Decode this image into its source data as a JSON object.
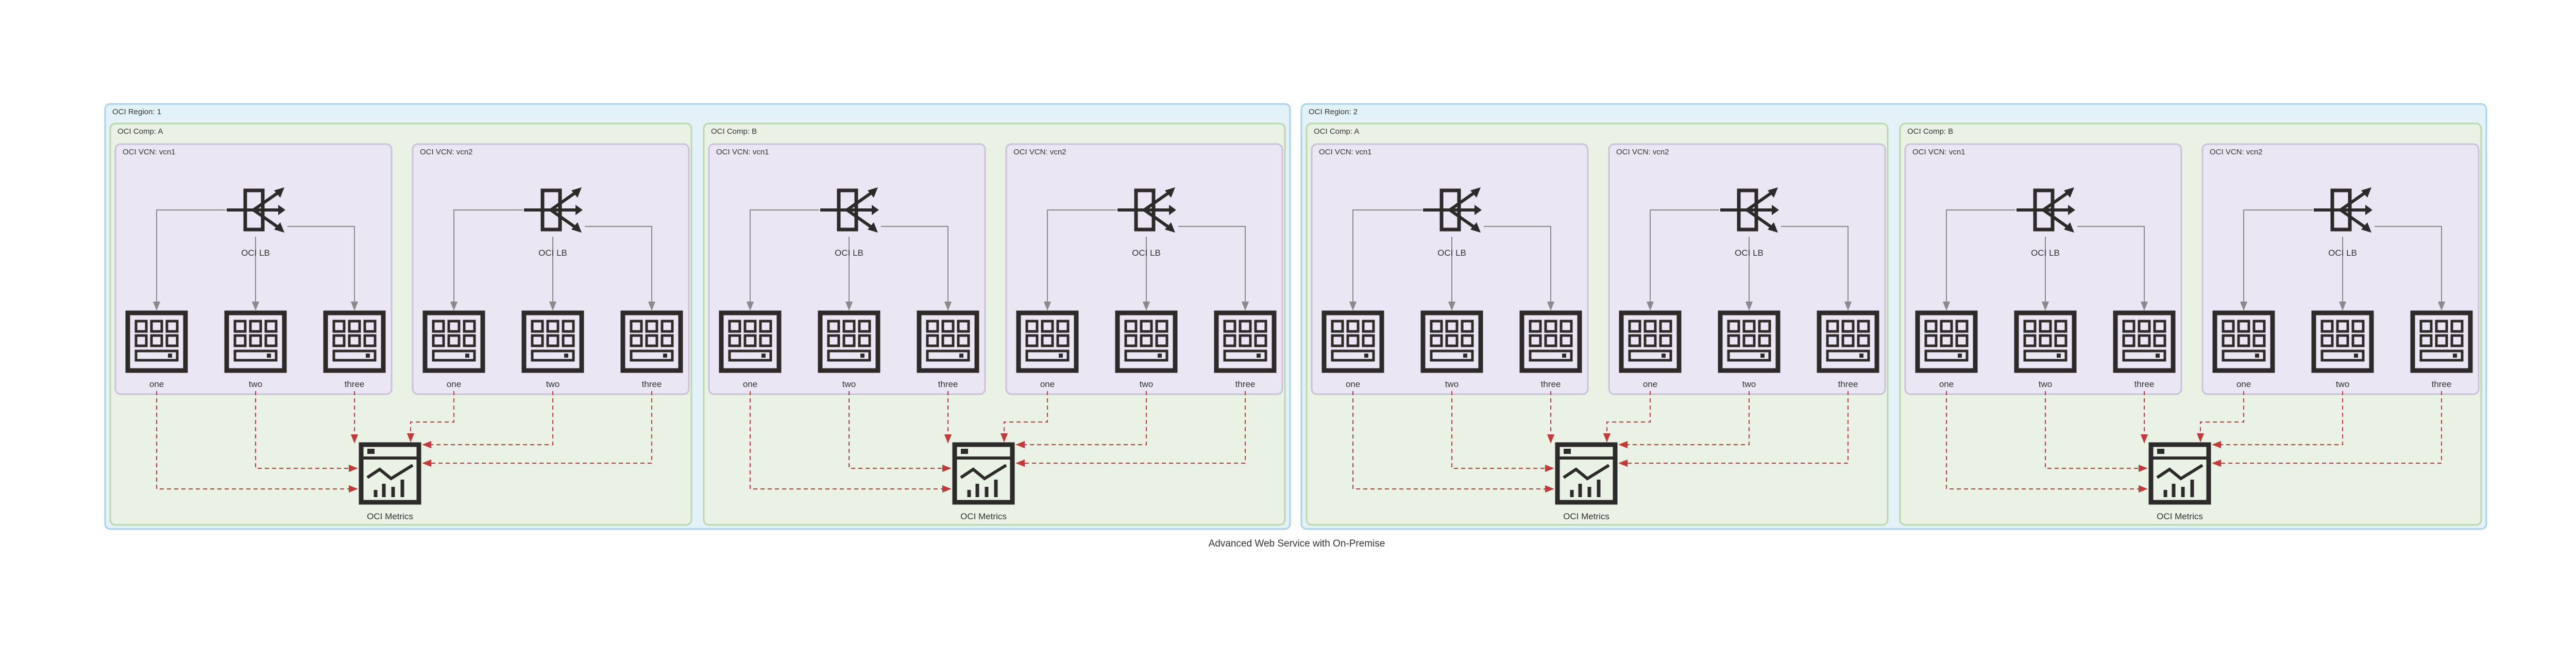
{
  "caption": "Advanced Web Service with On-Premise",
  "node_labels": {
    "lb": "OCI LB",
    "metrics": "OCI Metrics",
    "one": "one",
    "two": "two",
    "three": "three"
  },
  "icons": {
    "lb": "load-balancer-icon",
    "server": "server-rack-icon",
    "metrics": "metrics-dashboard-icon"
  },
  "colors": {
    "region_fill": "#e3f1f8",
    "comp_fill": "#eaf2e5",
    "vcn_fill": "#ebe6f3",
    "solid_edge": "#8a8a8a",
    "dashed_edge": "#c23b3b",
    "icon": "#2d2b2a"
  },
  "regions": [
    {
      "label": "OCI Region: 1",
      "comps": [
        {
          "label": "OCI Comp: A",
          "vcns": [
            {
              "label": "OCI VCN: vcn1"
            },
            {
              "label": "OCI VCN: vcn2"
            }
          ]
        },
        {
          "label": "OCI Comp: B",
          "vcns": [
            {
              "label": "OCI VCN: vcn1"
            },
            {
              "label": "OCI VCN: vcn2"
            }
          ]
        }
      ]
    },
    {
      "label": "OCI Region: 2",
      "comps": [
        {
          "label": "OCI Comp: A",
          "vcns": [
            {
              "label": "OCI VCN: vcn1"
            },
            {
              "label": "OCI VCN: vcn2"
            }
          ]
        },
        {
          "label": "OCI Comp: B",
          "vcns": [
            {
              "label": "OCI VCN: vcn1"
            },
            {
              "label": "OCI VCN: vcn2"
            }
          ]
        }
      ]
    }
  ]
}
